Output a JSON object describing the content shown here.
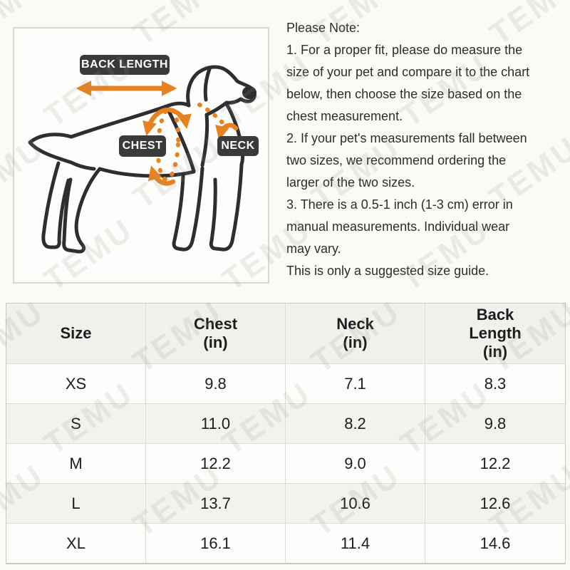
{
  "watermark": {
    "text": "TEMU"
  },
  "diagram": {
    "back_length_label": "BACK LENGTH",
    "chest_label": "CHEST",
    "neck_label": "NECK"
  },
  "note": {
    "lines": [
      "Please Note:",
      "1. For a proper fit, please do measure the",
      "size of your pet and compare it to the chart",
      "below, then choose the size based on the",
      "chest measurement.",
      "2. If your pet's measurements fall between",
      "two sizes, we recommend ordering the",
      "larger of the two sizes.",
      "3. There is a 0.5-1 inch (1-3 cm) error in",
      "manual measurements. Individual wear",
      "may vary.",
      "This is only a suggested size guide."
    ]
  },
  "table": {
    "headers": [
      [
        "Size"
      ],
      [
        "Chest",
        "(in)"
      ],
      [
        "Neck",
        "(in)"
      ],
      [
        "Back",
        "Length",
        "(in)"
      ]
    ],
    "rows": [
      [
        "XS",
        "9.8",
        "7.1",
        "8.3"
      ],
      [
        "S",
        "11.0",
        "8.2",
        "9.8"
      ],
      [
        "M",
        "12.2",
        "9.0",
        "12.2"
      ],
      [
        "L",
        "13.7",
        "10.6",
        "12.6"
      ],
      [
        "XL",
        "16.1",
        "11.4",
        "14.6"
      ]
    ]
  },
  "colors": {
    "accent_orange": "#e8821e",
    "label_dark": "#3a3a3a",
    "line_dark": "#2e2e2e"
  }
}
